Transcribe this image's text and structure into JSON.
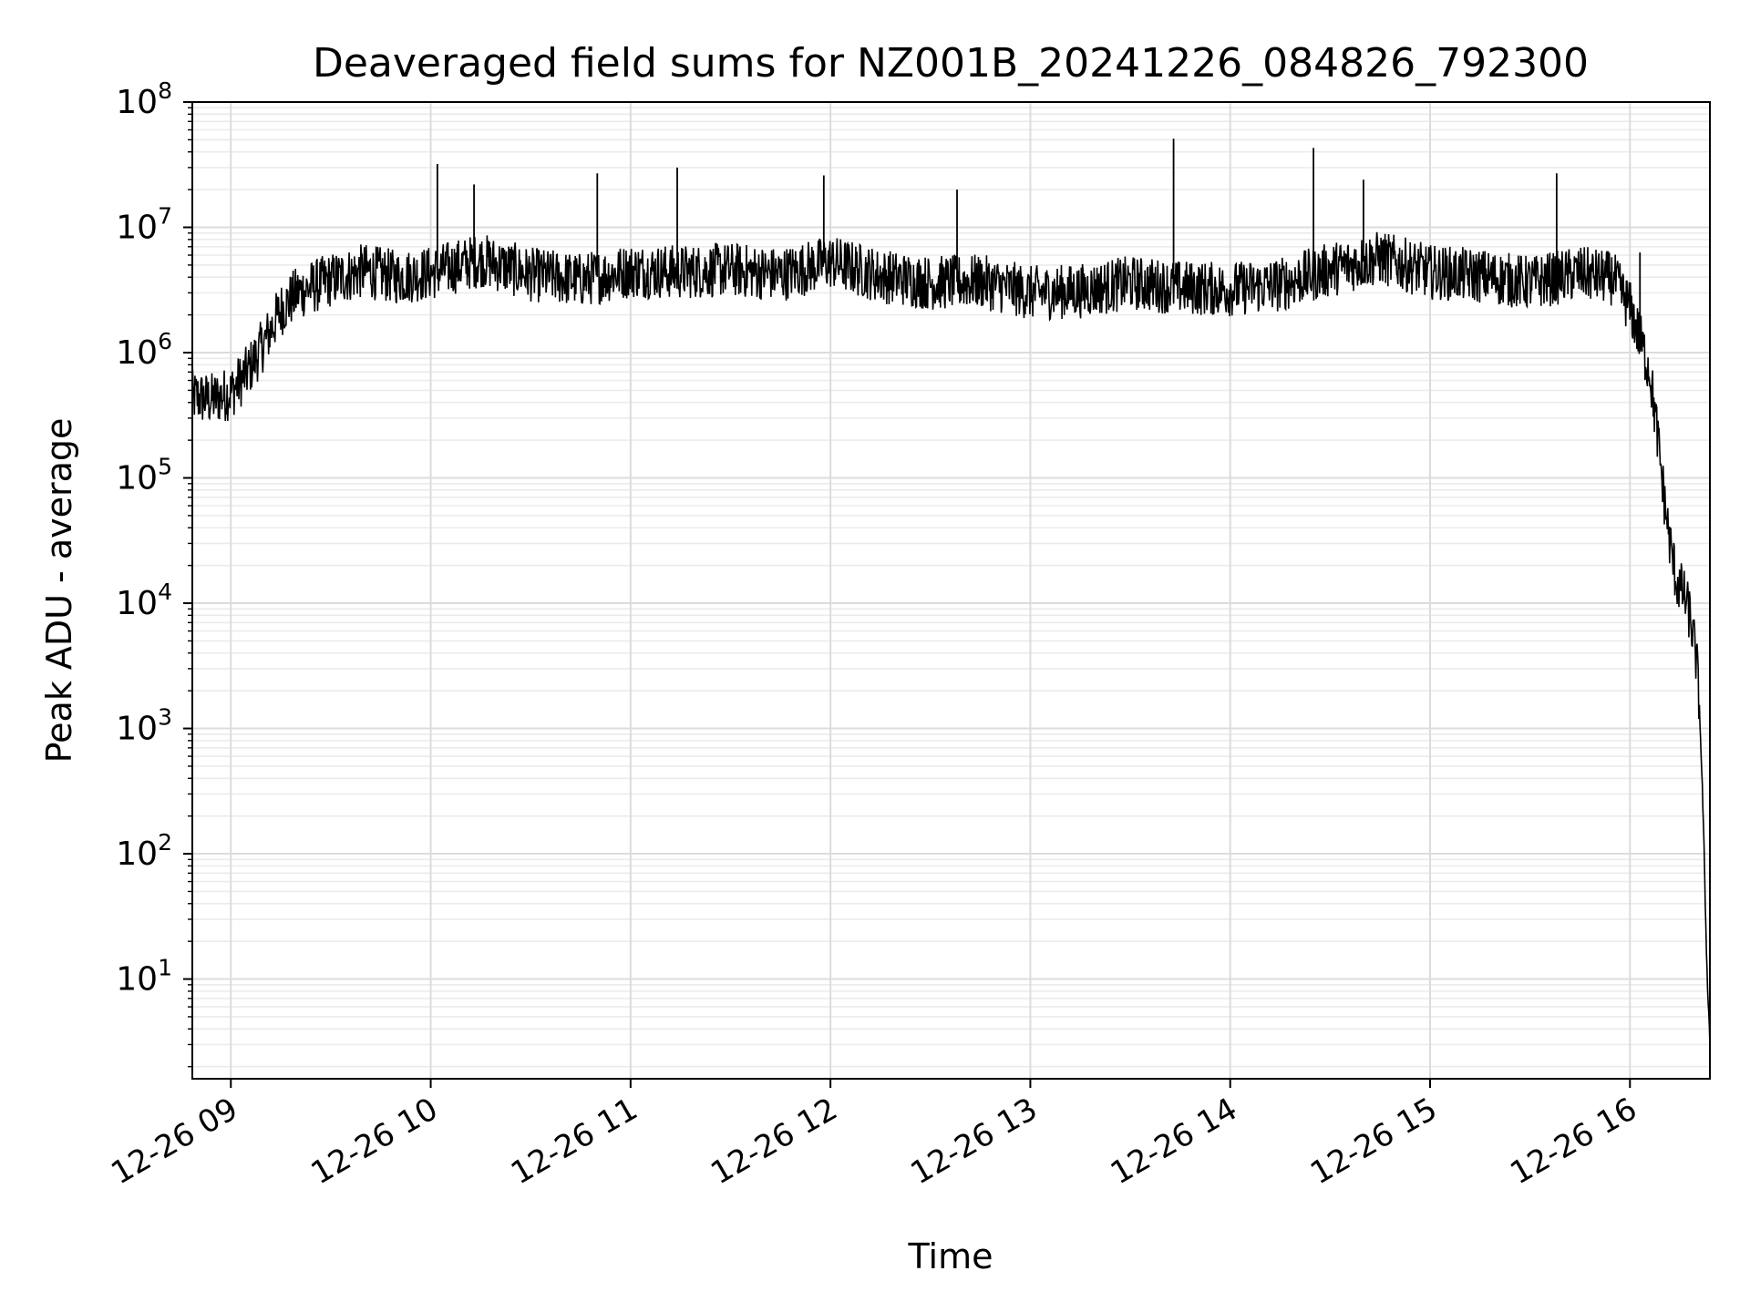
{
  "chart_data": {
    "type": "line",
    "title": "Deaveraged field sums for NZ001B_20241226_084826_792300",
    "xlabel": "Time",
    "ylabel": "Peak ADU - average",
    "yscale": "log",
    "ylim": [
      1.6,
      100000000
    ],
    "xlim": [
      "2024-12-26T08:48:26",
      "2024-12-26T16:24:00"
    ],
    "grid": "on (major and minor)",
    "x_ticks": [
      "2024-12-26T09:00",
      "2024-12-26T10:00",
      "2024-12-26T11:00",
      "2024-12-26T12:00",
      "2024-12-26T13:00",
      "2024-12-26T14:00",
      "2024-12-26T15:00",
      "2024-12-26T16:00"
    ],
    "x_tick_labels": [
      "12-26 09",
      "12-26 10",
      "12-26 11",
      "12-26 12",
      "12-26 13",
      "12-26 14",
      "12-26 15",
      "12-26 16"
    ],
    "y_tick_mantissa": "10",
    "y_tick_exponents": [
      "1",
      "2",
      "3",
      "4",
      "5",
      "6",
      "7",
      "8"
    ],
    "line_color": "#000000",
    "series": [
      {
        "x": [
          "2024-12-26T08:48",
          "2024-12-26T08:54",
          "2024-12-26T09:00",
          "2024-12-26T09:05",
          "2024-12-26T09:10",
          "2024-12-26T09:15",
          "2024-12-26T09:20",
          "2024-12-26T09:30",
          "2024-12-26T09:40",
          "2024-12-26T09:50",
          "2024-12-26T10:00",
          "2024-12-26T10:15",
          "2024-12-26T10:30",
          "2024-12-26T10:45",
          "2024-12-26T11:00",
          "2024-12-26T11:15",
          "2024-12-26T11:30",
          "2024-12-26T11:45",
          "2024-12-26T12:00",
          "2024-12-26T12:15",
          "2024-12-26T12:30",
          "2024-12-26T12:45",
          "2024-12-26T13:00",
          "2024-12-26T13:15",
          "2024-12-26T13:30",
          "2024-12-26T13:45",
          "2024-12-26T14:00",
          "2024-12-26T14:15",
          "2024-12-26T14:30",
          "2024-12-26T14:45",
          "2024-12-26T15:00",
          "2024-12-26T15:15",
          "2024-12-26T15:30",
          "2024-12-26T15:45",
          "2024-12-26T15:55",
          "2024-12-26T16:00",
          "2024-12-26T16:03",
          "2024-12-26T16:06",
          "2024-12-26T16:08",
          "2024-12-26T16:10",
          "2024-12-26T16:12",
          "2024-12-26T16:14",
          "2024-12-26T16:16",
          "2024-12-26T16:18",
          "2024-12-26T16:20",
          "2024-12-26T16:21",
          "2024-12-26T16:22",
          "2024-12-26T16:23",
          "2024-12-26T16:24"
        ],
        "y": [
          450000,
          420000,
          480000,
          700000,
          1200000,
          2200000,
          3000000,
          3800000,
          4500000,
          4000000,
          4300000,
          5500000,
          4200000,
          3800000,
          4500000,
          4400000,
          4600000,
          4200000,
          5300000,
          4100000,
          3600000,
          3700000,
          3000000,
          3100000,
          3600000,
          3300000,
          3200000,
          3500000,
          4600000,
          5700000,
          4400000,
          4100000,
          3600000,
          4300000,
          3900000,
          2300000,
          1300000,
          700000,
          250000,
          80000,
          30000,
          15000,
          12000,
          8000,
          3500,
          1200,
          200,
          15,
          3
        ]
      }
    ],
    "spikes": [
      {
        "x": "2024-12-26T10:02",
        "y": 32000000
      },
      {
        "x": "2024-12-26T10:13",
        "y": 22000000
      },
      {
        "x": "2024-12-26T10:50",
        "y": 27000000
      },
      {
        "x": "2024-12-26T11:14",
        "y": 30000000
      },
      {
        "x": "2024-12-26T11:58",
        "y": 26000000
      },
      {
        "x": "2024-12-26T12:38",
        "y": 20000000
      },
      {
        "x": "2024-12-26T13:43",
        "y": 51000000
      },
      {
        "x": "2024-12-26T14:25",
        "y": 43000000
      },
      {
        "x": "2024-12-26T14:40",
        "y": 24000000
      },
      {
        "x": "2024-12-26T15:38",
        "y": 27000000
      },
      {
        "x": "2024-12-26T16:03",
        "y": 6300000
      }
    ]
  }
}
